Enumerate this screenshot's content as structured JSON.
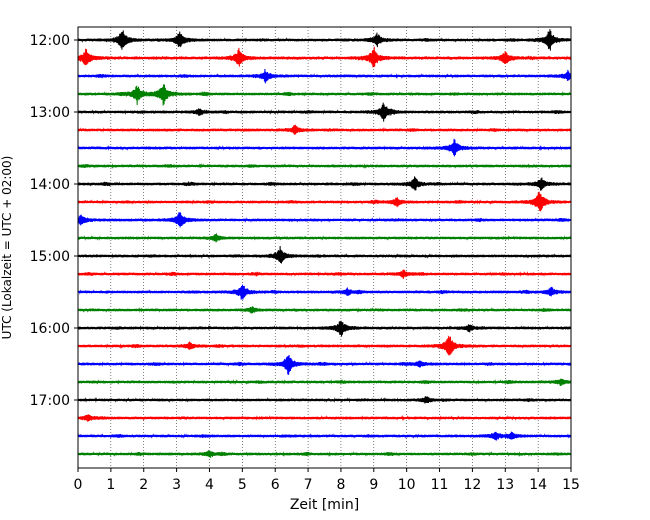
{
  "chart_data": {
    "type": "line",
    "title": "",
    "xlabel": "Zeit  [min]",
    "ylabel": "UTC (Lokalzeit = UTC + 02:00)",
    "xlim": [
      0,
      15
    ],
    "x_ticks": [
      "0",
      "1",
      "2",
      "3",
      "4",
      "5",
      "6",
      "7",
      "8",
      "9",
      "10",
      "11",
      "12",
      "13",
      "14",
      "15"
    ],
    "y_ticks": [
      "12:00",
      "13:00",
      "14:00",
      "15:00",
      "16:00",
      "17:00"
    ],
    "grid": {
      "x": true,
      "y": false,
      "style": "dotted"
    },
    "trace_interval_min": 15,
    "series_colors": [
      "#000000",
      "#ff0000",
      "#0000ff",
      "#008000"
    ],
    "traces": [
      {
        "start": "12:00",
        "color": "#000000",
        "noise": 0.18,
        "events": [
          [
            1.35,
            1.0
          ],
          [
            3.1,
            0.8
          ],
          [
            9.1,
            0.6
          ],
          [
            14.35,
            1.0
          ]
        ]
      },
      {
        "start": "12:15",
        "color": "#ff0000",
        "noise": 0.32,
        "events": [
          [
            0.25,
            0.8
          ],
          [
            4.9,
            0.8
          ],
          [
            9.0,
            1.0
          ],
          [
            13.0,
            0.6
          ]
        ]
      },
      {
        "start": "12:30",
        "color": "#0000ff",
        "noise": 0.2,
        "events": [
          [
            5.7,
            0.5
          ],
          [
            14.9,
            0.4
          ]
        ]
      },
      {
        "start": "12:45",
        "color": "#008000",
        "noise": 0.18,
        "events": [
          [
            1.8,
            0.8
          ],
          [
            2.6,
            1.0
          ]
        ]
      },
      {
        "start": "13:00",
        "color": "#000000",
        "noise": 0.2,
        "events": [
          [
            3.7,
            0.3
          ],
          [
            9.3,
            0.8
          ]
        ]
      },
      {
        "start": "13:15",
        "color": "#ff0000",
        "noise": 0.2,
        "events": [
          [
            6.6,
            0.4
          ]
        ]
      },
      {
        "start": "13:30",
        "color": "#0000ff",
        "noise": 0.18,
        "events": [
          [
            11.45,
            0.8
          ]
        ]
      },
      {
        "start": "13:45",
        "color": "#008000",
        "noise": 0.18,
        "events": []
      },
      {
        "start": "14:00",
        "color": "#000000",
        "noise": 0.2,
        "events": [
          [
            10.25,
            0.6
          ],
          [
            14.1,
            0.6
          ]
        ]
      },
      {
        "start": "14:15",
        "color": "#ff0000",
        "noise": 0.18,
        "events": [
          [
            9.7,
            0.4
          ],
          [
            14.05,
            1.0
          ]
        ]
      },
      {
        "start": "14:30",
        "color": "#0000ff",
        "noise": 0.2,
        "events": [
          [
            0.1,
            0.5
          ],
          [
            3.1,
            0.8
          ]
        ]
      },
      {
        "start": "14:45",
        "color": "#008000",
        "noise": 0.16,
        "events": [
          [
            4.2,
            0.3
          ]
        ]
      },
      {
        "start": "15:00",
        "color": "#000000",
        "noise": 0.2,
        "events": [
          [
            6.15,
            0.8
          ]
        ]
      },
      {
        "start": "15:15",
        "color": "#ff0000",
        "noise": 0.2,
        "events": [
          [
            9.9,
            0.3
          ]
        ]
      },
      {
        "start": "15:30",
        "color": "#0000ff",
        "noise": 0.18,
        "events": [
          [
            5.0,
            0.8
          ],
          [
            8.2,
            0.3
          ],
          [
            14.4,
            0.4
          ]
        ]
      },
      {
        "start": "15:45",
        "color": "#008000",
        "noise": 0.16,
        "events": [
          [
            5.3,
            0.3
          ]
        ]
      },
      {
        "start": "16:00",
        "color": "#000000",
        "noise": 0.2,
        "events": [
          [
            8.0,
            0.8
          ],
          [
            11.9,
            0.3
          ]
        ]
      },
      {
        "start": "16:15",
        "color": "#ff0000",
        "noise": 0.2,
        "events": [
          [
            11.3,
            1.0
          ],
          [
            3.4,
            0.3
          ]
        ]
      },
      {
        "start": "16:30",
        "color": "#0000ff",
        "noise": 0.18,
        "events": [
          [
            6.4,
            1.0
          ],
          [
            10.4,
            0.3
          ]
        ]
      },
      {
        "start": "16:45",
        "color": "#008000",
        "noise": 0.18,
        "events": [
          [
            14.7,
            0.3
          ]
        ]
      },
      {
        "start": "17:00",
        "color": "#000000",
        "noise": 0.16,
        "events": [
          [
            10.6,
            0.3
          ]
        ]
      },
      {
        "start": "17:15",
        "color": "#ff0000",
        "noise": 0.16,
        "events": [
          [
            0.3,
            0.3
          ]
        ]
      },
      {
        "start": "17:30",
        "color": "#0000ff",
        "noise": 0.16,
        "events": [
          [
            12.7,
            0.4
          ],
          [
            13.2,
            0.3
          ]
        ]
      },
      {
        "start": "17:45",
        "color": "#008000",
        "noise": 0.16,
        "events": [
          [
            4.0,
            0.3
          ]
        ]
      }
    ]
  }
}
